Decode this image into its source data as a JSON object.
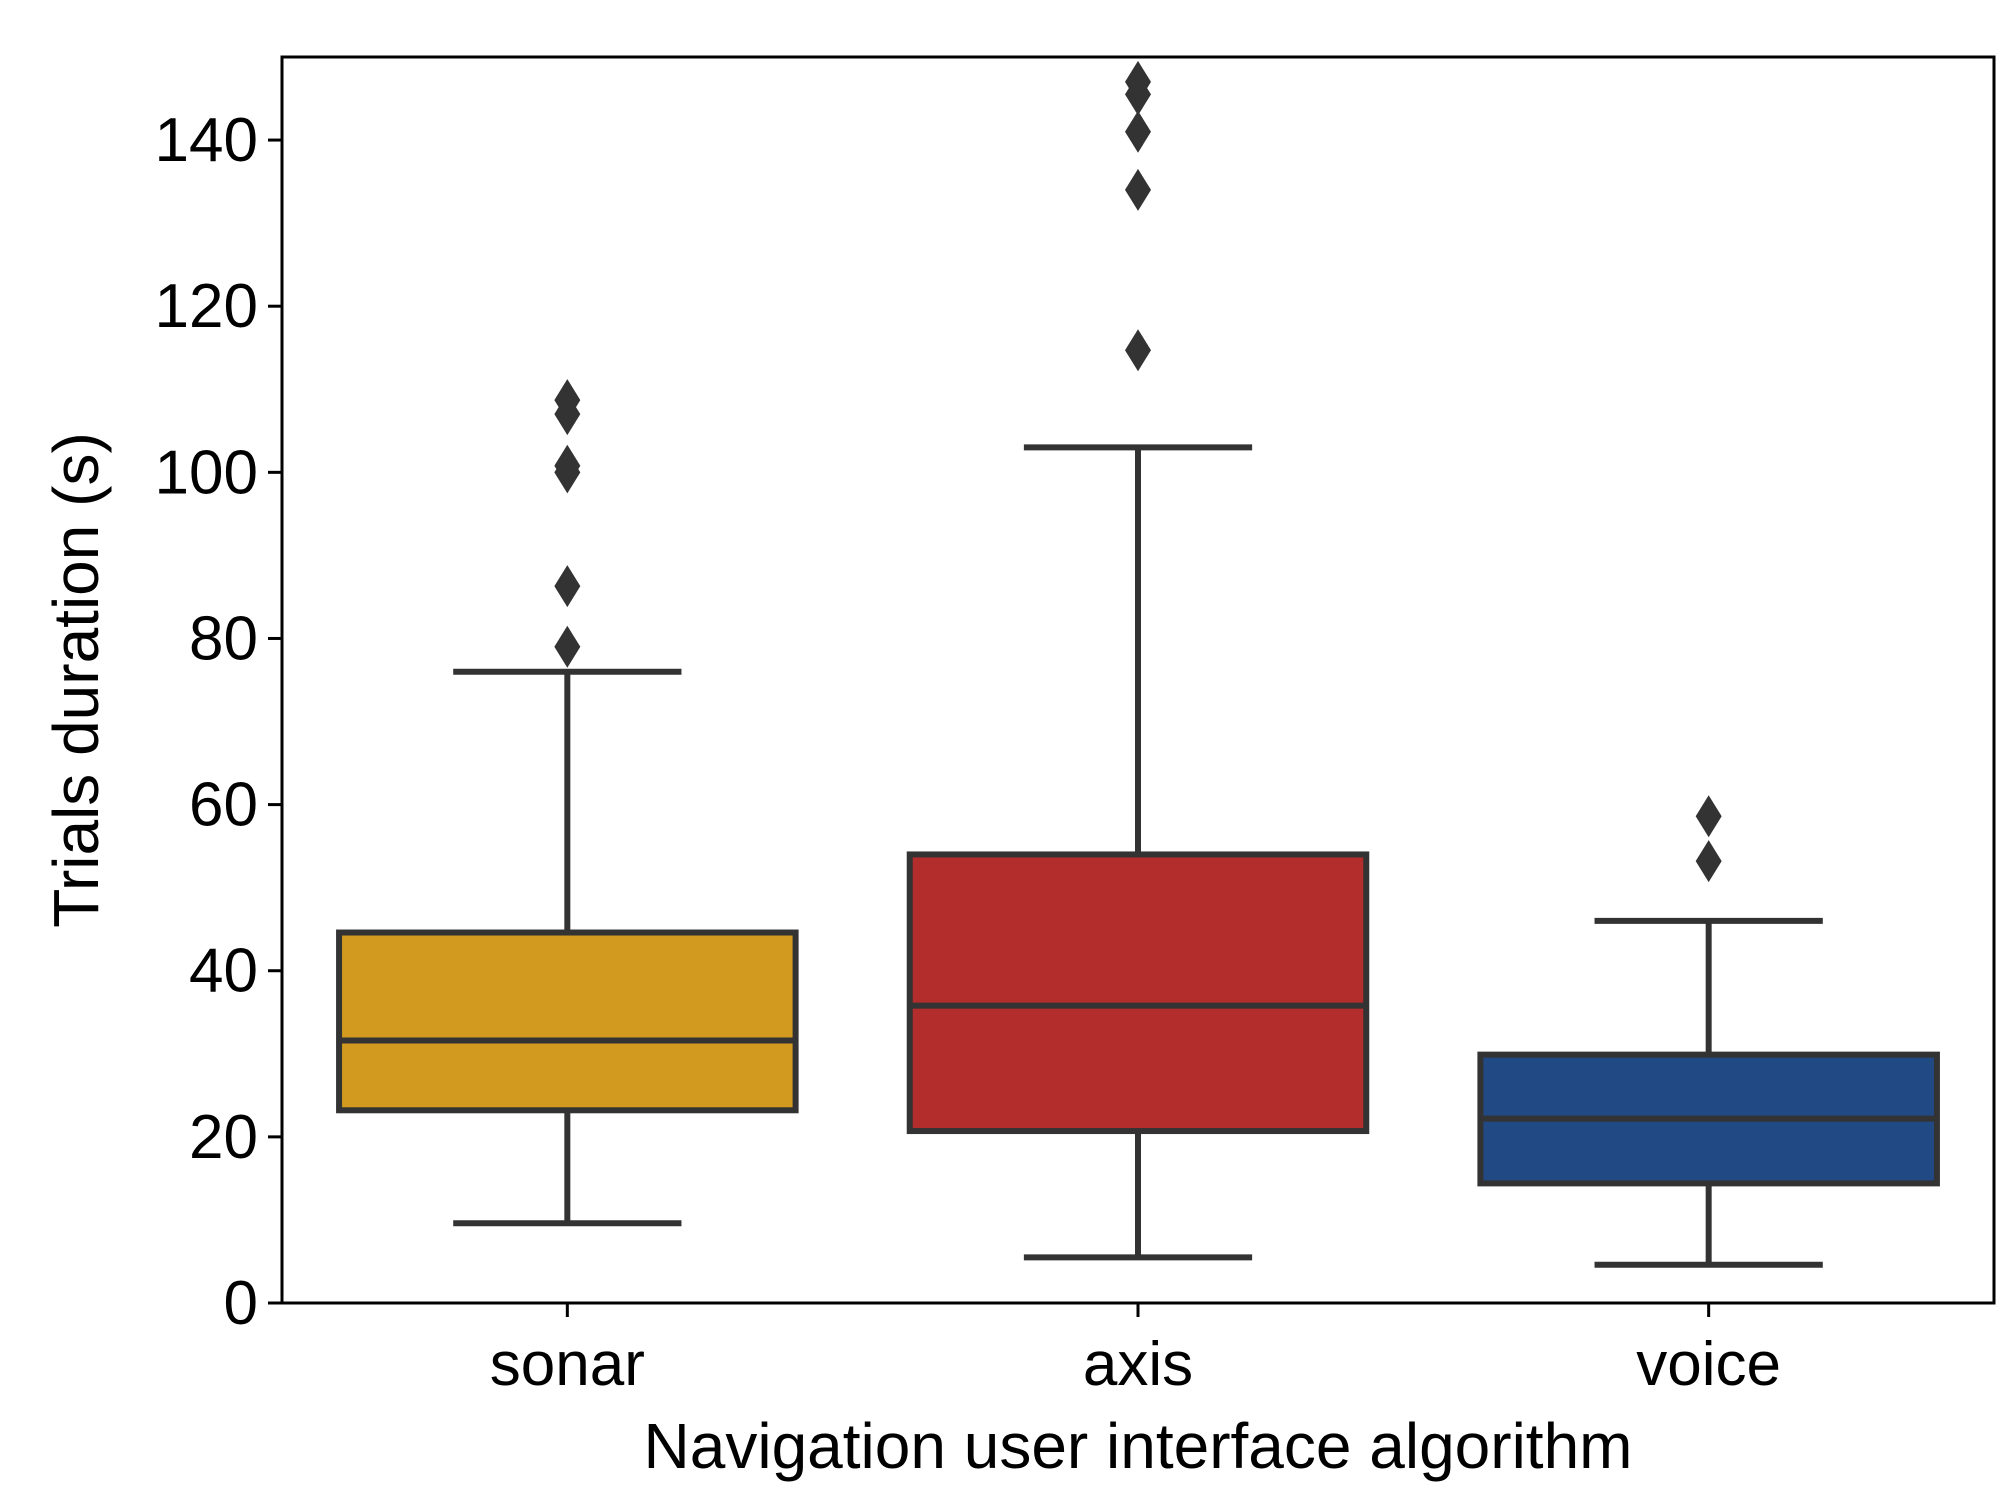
{
  "chart_data": {
    "type": "box",
    "title": "",
    "xlabel": "Navigation user interface algorithm",
    "ylabel": "Trials duration (s)",
    "ylim": [
      0,
      150
    ],
    "yticks": [
      0,
      20,
      40,
      60,
      80,
      100,
      120,
      140
    ],
    "grid": false,
    "categories": [
      "sonar",
      "axis",
      "voice"
    ],
    "boxes": [
      {
        "name": "sonar",
        "color": "#d29b1f",
        "whisker_low": 9.6,
        "q1": 23.2,
        "median": 31.6,
        "q3": 44.6,
        "whisker_high": 76,
        "outliers": [
          79,
          86.3,
          100,
          100.8,
          107,
          108.7
        ]
      },
      {
        "name": "axis",
        "color": "#b22d2b",
        "whisker_low": 5.5,
        "q1": 20.7,
        "median": 35.8,
        "q3": 54,
        "whisker_high": 103,
        "outliers": [
          114.7,
          134,
          141,
          145.5,
          147
        ]
      },
      {
        "name": "voice",
        "color": "#214a85",
        "whisker_low": 4.6,
        "q1": 14.4,
        "median": 22.2,
        "q3": 29.9,
        "whisker_high": 46,
        "outliers": [
          53.2,
          58.6
        ]
      }
    ],
    "edge_color": "#333333",
    "outlier_color": "#333333"
  }
}
